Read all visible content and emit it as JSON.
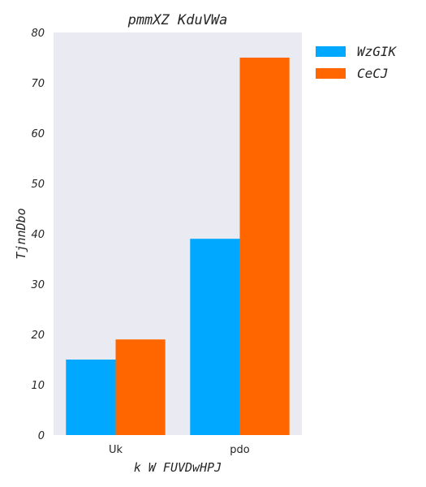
{
  "chart_data": {
    "type": "bar",
    "title": "pmmXZ KduVWa",
    "xlabel": "k W FUVDwHPJ",
    "ylabel": "TjnnDbo",
    "categories": [
      "Uk",
      "pdo"
    ],
    "series": [
      {
        "name": "WzGIK",
        "values": [
          15,
          39
        ],
        "color": "#00a9ff"
      },
      {
        "name": "CeCJ",
        "values": [
          19,
          75
        ],
        "color": "#ff6600"
      }
    ],
    "ylim": [
      0,
      80
    ],
    "yticks": [
      0,
      10,
      20,
      30,
      40,
      50,
      60,
      70,
      80
    ],
    "grid": false,
    "legend_position": "outside-top-right",
    "background_color": "#eaeaf2"
  }
}
